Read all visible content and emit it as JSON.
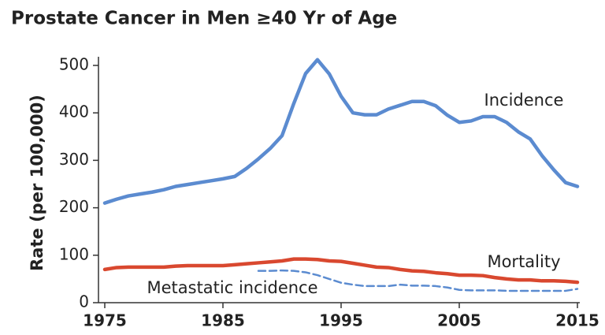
{
  "chart_data": {
    "type": "line",
    "title": "Prostate Cancer in Men ≥40 Yr of Age",
    "y_label": "Rate (per 100,000)",
    "x": [
      1975,
      1976,
      1977,
      1978,
      1979,
      1980,
      1981,
      1982,
      1983,
      1984,
      1985,
      1986,
      1987,
      1988,
      1989,
      1990,
      1991,
      1992,
      1993,
      1994,
      1995,
      1996,
      1997,
      1998,
      1999,
      2000,
      2001,
      2002,
      2003,
      2004,
      2005,
      2006,
      2007,
      2008,
      2009,
      2010,
      2011,
      2012,
      2013,
      2014,
      2015
    ],
    "series": [
      {
        "name": "Incidence",
        "color": "#5b8bd0",
        "line_style": "solid",
        "values": [
          210,
          218,
          225,
          229,
          233,
          238,
          245,
          249,
          253,
          257,
          261,
          266,
          283,
          303,
          325,
          352,
          420,
          483,
          512,
          482,
          435,
          400,
          396,
          396,
          408,
          416,
          424,
          424,
          415,
          395,
          380,
          383,
          392,
          392,
          380,
          360,
          345,
          310,
          280,
          253,
          245
        ]
      },
      {
        "name": "Mortality",
        "color": "#d9482f",
        "line_style": "solid",
        "values": [
          70,
          74,
          75,
          75,
          75,
          75,
          77,
          78,
          78,
          78,
          78,
          80,
          82,
          84,
          86,
          88,
          92,
          92,
          91,
          88,
          87,
          83,
          79,
          75,
          74,
          70,
          67,
          66,
          63,
          61,
          58,
          58,
          57,
          53,
          50,
          48,
          48,
          46,
          46,
          45,
          43
        ]
      },
      {
        "name": "Metastatic incidence",
        "color": "#5b8bd0",
        "line_style": "dashed",
        "values": [
          null,
          null,
          null,
          null,
          null,
          null,
          null,
          null,
          null,
          null,
          null,
          null,
          null,
          67,
          67,
          68,
          67,
          64,
          58,
          50,
          42,
          38,
          35,
          35,
          35,
          38,
          36,
          36,
          35,
          32,
          27,
          26,
          26,
          26,
          25,
          25,
          25,
          25,
          25,
          25,
          29
        ]
      }
    ],
    "xlim": [
      1975,
      2015
    ],
    "ylim": [
      0,
      500
    ],
    "xticks": [
      1975,
      1985,
      1995,
      2005,
      2015
    ],
    "yticks": [
      0,
      100,
      200,
      300,
      400,
      500
    ]
  }
}
